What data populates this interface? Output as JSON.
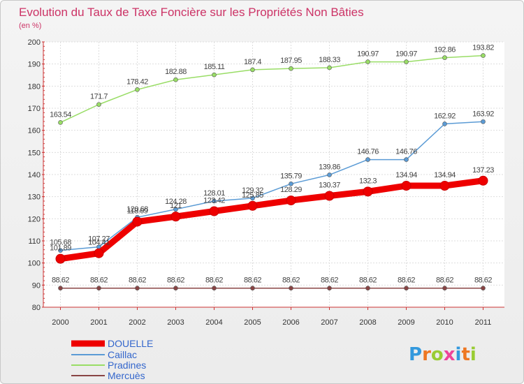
{
  "chart_data": {
    "type": "line",
    "title": "Evolution du Taux de Taxe Foncière sur les Propriétés Non Bâties",
    "subtitle": "(en %)",
    "xlabel": "",
    "ylabel": "",
    "ylim": [
      80,
      200
    ],
    "yticks": [
      80,
      90,
      100,
      110,
      120,
      130,
      140,
      150,
      160,
      170,
      180,
      190,
      200
    ],
    "grid": true,
    "legend_position": "bottom-left",
    "categories": [
      "2000",
      "2001",
      "2002",
      "2003",
      "2004",
      "2005",
      "2006",
      "2007",
      "2008",
      "2009",
      "2010",
      "2011"
    ],
    "series": [
      {
        "name": "DOUELLE",
        "color": "#ee0000",
        "values": [
          101.89,
          104.41,
          118.69,
          121,
          123.42,
          125.85,
          128.29,
          130.37,
          132.3,
          134.94,
          134.94,
          137.23
        ],
        "labels": [
          "101.89",
          "104.41",
          "118.69",
          "121",
          "123.42",
          "125.85",
          "128.29",
          "130.37",
          "132.3",
          "134.94",
          "134.94",
          "137.23"
        ]
      },
      {
        "name": "Caillac",
        "color": "#5b9bd5",
        "values": [
          105.68,
          107.27,
          120.68,
          124.28,
          128.01,
          129.32,
          135.79,
          139.86,
          146.76,
          146.76,
          162.92,
          163.92
        ],
        "labels": [
          "105.68",
          "107.27",
          "120.68",
          "124.28",
          "128.01",
          "129.32",
          "135.79",
          "139.86",
          "146.76",
          "146.76",
          "162.92",
          "163.92"
        ]
      },
      {
        "name": "Pradines",
        "color": "#99dd66",
        "values": [
          163.54,
          171.7,
          178.42,
          182.88,
          185.11,
          187.4,
          187.95,
          188.33,
          190.97,
          190.97,
          192.86,
          193.82
        ],
        "labels": [
          "163.54",
          "171.7",
          "178.42",
          "182.88",
          "185.11",
          "187.4",
          "187.95",
          "188.33",
          "190.97",
          "190.97",
          "192.86",
          "193.82"
        ]
      },
      {
        "name": "Mercuès",
        "color": "#884444",
        "values": [
          88.62,
          88.62,
          88.62,
          88.62,
          88.62,
          88.62,
          88.62,
          88.62,
          88.62,
          88.62,
          88.62,
          88.62
        ],
        "labels": [
          "88.62",
          "88.62",
          "88.62",
          "88.62",
          "88.62",
          "88.62",
          "88.62",
          "88.62",
          "88.62",
          "88.62",
          "88.62",
          "88.62"
        ]
      }
    ]
  },
  "brand": {
    "logo_text": "Proxiti"
  }
}
